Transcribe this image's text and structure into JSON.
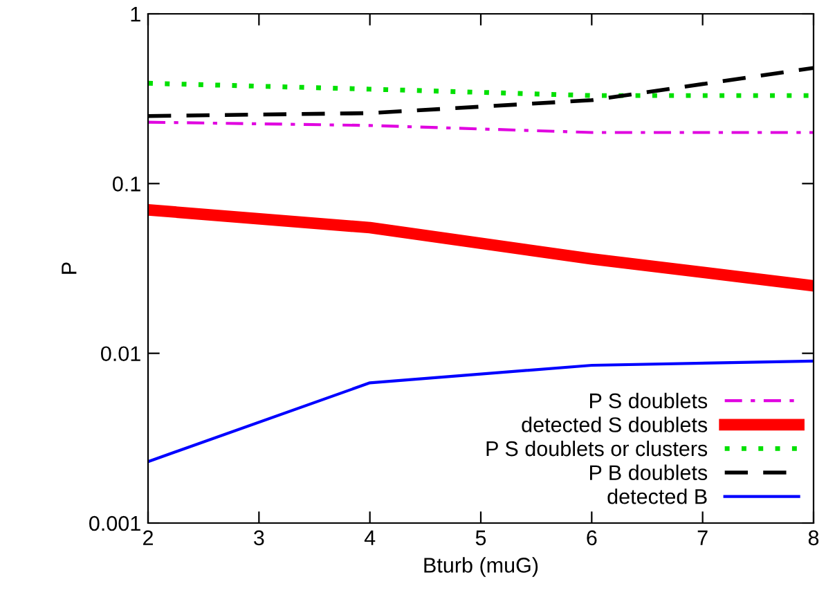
{
  "chart_data": {
    "type": "line",
    "xlabel": "Bturb (muG)",
    "ylabel": "P",
    "log": "y",
    "x": [
      2,
      4,
      6,
      8
    ],
    "xlim": [
      2,
      8
    ],
    "xticks": [
      2,
      3,
      4,
      5,
      6,
      7,
      8
    ],
    "ylim": [
      0.001,
      1
    ],
    "yticks": [
      0.001,
      0.01,
      0.1,
      1
    ],
    "legend": "bottom right",
    "grid": false,
    "series": [
      {
        "name": "P S doublets",
        "color": "#e000e0",
        "line_style": "dashdot",
        "values": [
          0.23,
          0.22,
          0.2,
          0.2
        ]
      },
      {
        "name": "detected S doublets",
        "color": "#ff0000",
        "line_style": "solid",
        "values": [
          0.07,
          0.055,
          0.036,
          0.025
        ]
      },
      {
        "name": "P S doublets or clusters",
        "color": "#00e000",
        "line_style": "dotted",
        "values": [
          0.39,
          0.36,
          0.33,
          0.33
        ]
      },
      {
        "name": "P B doublets",
        "color": "#000000",
        "line_style": "dashed",
        "values": [
          0.25,
          0.26,
          0.31,
          0.48
        ]
      },
      {
        "name": "detected B",
        "color": "#0000ff",
        "line_style": "solid",
        "values": [
          0.0023,
          0.0067,
          0.0085,
          0.009
        ]
      }
    ]
  }
}
